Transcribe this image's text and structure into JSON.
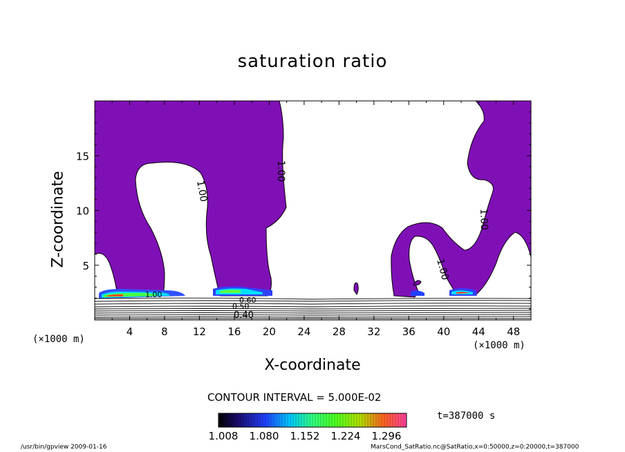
{
  "chart_data": {
    "type": "contour",
    "title": "saturation ratio",
    "xlabel": "X-coordinate",
    "ylabel": "Z-coordinate",
    "x_unit": "(×1000 m)",
    "y_unit": "(×1000 m)",
    "x_ticks": [
      "4",
      "8",
      "12",
      "16",
      "20",
      "24",
      "28",
      "32",
      "36",
      "40",
      "44",
      "48"
    ],
    "y_ticks": [
      "5",
      "10",
      "15"
    ],
    "xlim": [
      0,
      50
    ],
    "ylim": [
      0,
      20
    ],
    "contour_labels": [
      "1.00",
      "1.00",
      "1.00",
      "1.00",
      "1.00",
      "0.40",
      "0.50",
      "0.60"
    ],
    "contour_interval_text": "CONTOUR INTERVAL = 5.000E-02",
    "colorbar_ticks": [
      "1.008",
      "1.080",
      "1.152",
      "1.224",
      "1.296"
    ],
    "time_text": "t=387000 s",
    "supersaturated_color": "#7f10b6"
  },
  "footer": {
    "left": "/usr/bin/gpview   2009-01-16",
    "right": "MarsCond_SatRatio.nc@SatRatio,x=0:50000,z=0:20000,t=387000"
  }
}
